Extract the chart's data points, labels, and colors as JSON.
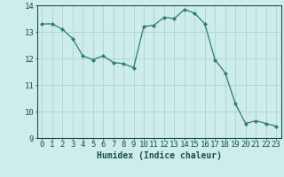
{
  "x": [
    0,
    1,
    2,
    3,
    4,
    5,
    6,
    7,
    8,
    9,
    10,
    11,
    12,
    13,
    14,
    15,
    16,
    17,
    18,
    19,
    20,
    21,
    22,
    23
  ],
  "y": [
    13.3,
    13.3,
    13.1,
    12.75,
    12.1,
    11.95,
    12.1,
    11.85,
    11.8,
    11.65,
    13.2,
    13.25,
    13.55,
    13.5,
    13.85,
    13.7,
    13.3,
    11.95,
    11.45,
    10.3,
    9.55,
    9.65,
    9.55,
    9.45
  ],
  "line_color": "#2e7d6e",
  "marker": "D",
  "marker_size": 2.0,
  "bg_color": "#cdecea",
  "grid_color": "#b0d8d5",
  "xlabel": "Humidex (Indice chaleur)",
  "ylim": [
    9,
    14
  ],
  "xlim": [
    -0.5,
    23.5
  ],
  "yticks": [
    9,
    10,
    11,
    12,
    13,
    14
  ],
  "xticks": [
    0,
    1,
    2,
    3,
    4,
    5,
    6,
    7,
    8,
    9,
    10,
    11,
    12,
    13,
    14,
    15,
    16,
    17,
    18,
    19,
    20,
    21,
    22,
    23
  ],
  "xlabel_fontsize": 7,
  "tick_fontsize": 6.5,
  "tick_color": "#1a5050",
  "axis_color": "#1a5050"
}
